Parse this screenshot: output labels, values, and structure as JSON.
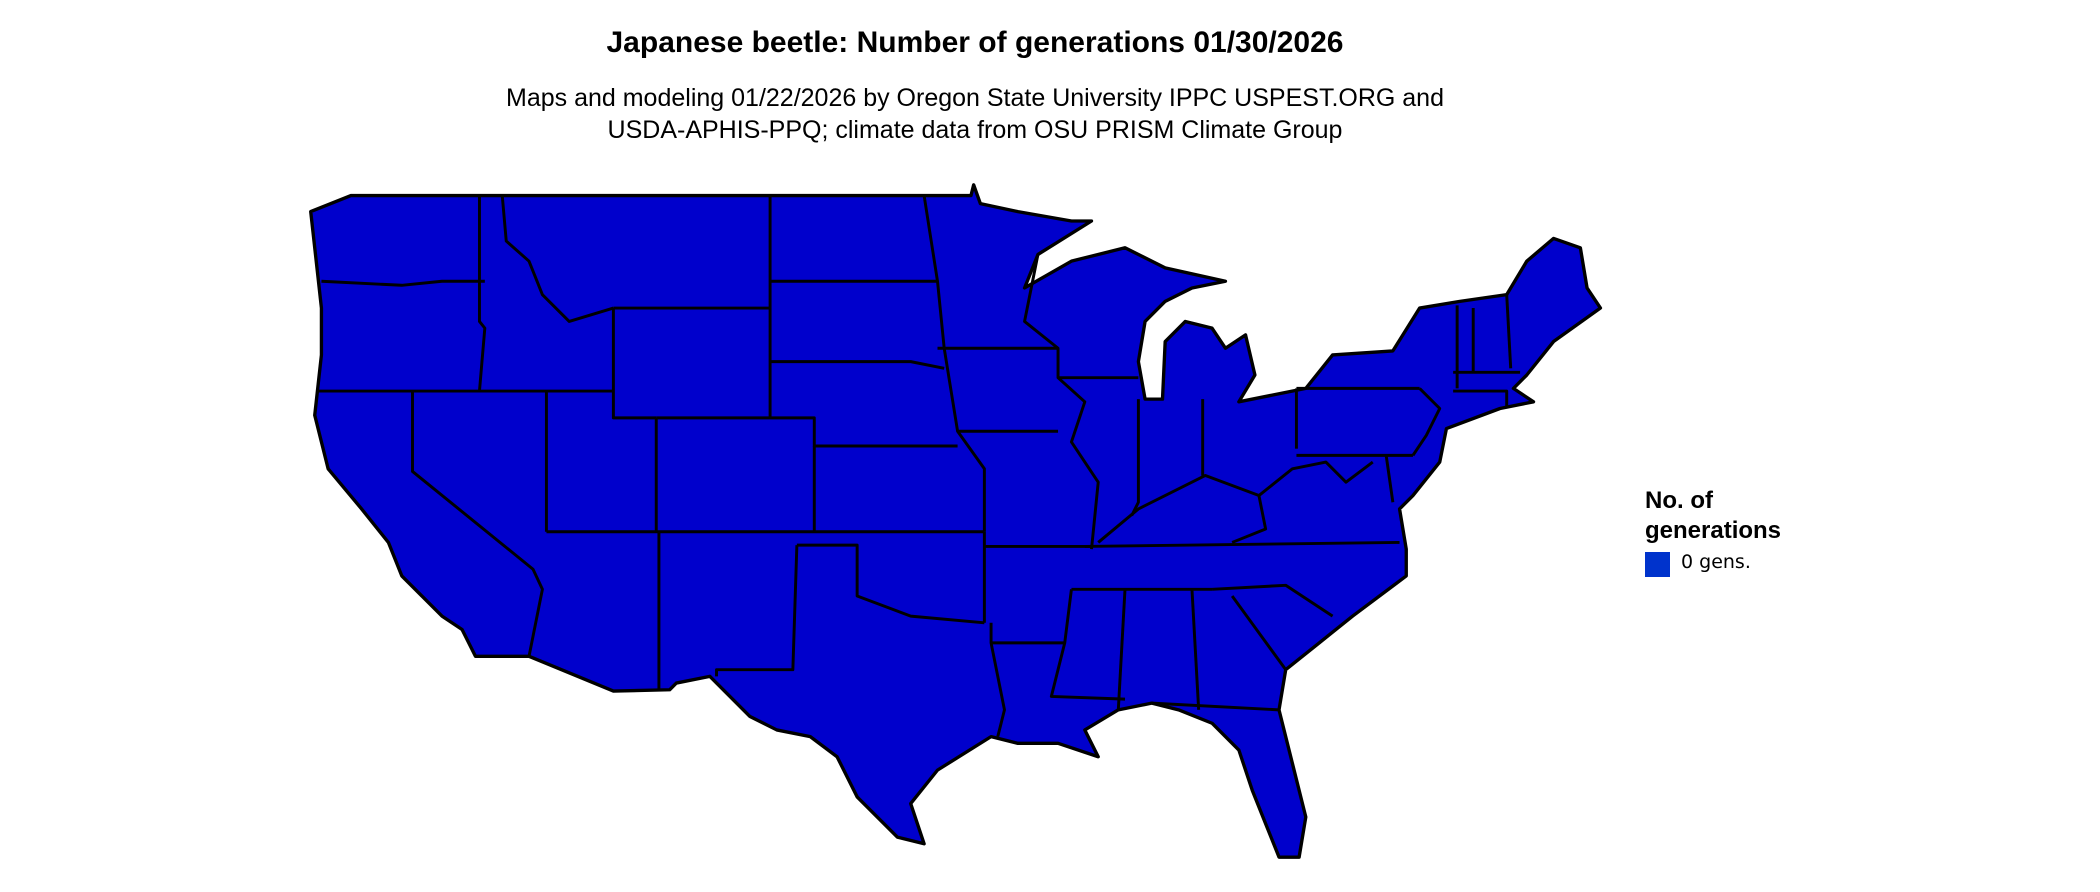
{
  "title": "Japanese beetle: Number of generations 01/30/2026",
  "subtitle_lines": [
    "Maps and modeling 01/22/2026 by Oregon State University IPPC USPEST.ORG and",
    "USDA-APHIS-PPQ; climate data from OSU PRISM Climate Group"
  ],
  "map": {
    "region": "Contiguous United States",
    "fill_color": "#0000cc",
    "border_color": "#000000"
  },
  "legend": {
    "title": "No. of generations",
    "items": [
      {
        "label": "0 gens.",
        "color": "#0033cc"
      }
    ]
  }
}
